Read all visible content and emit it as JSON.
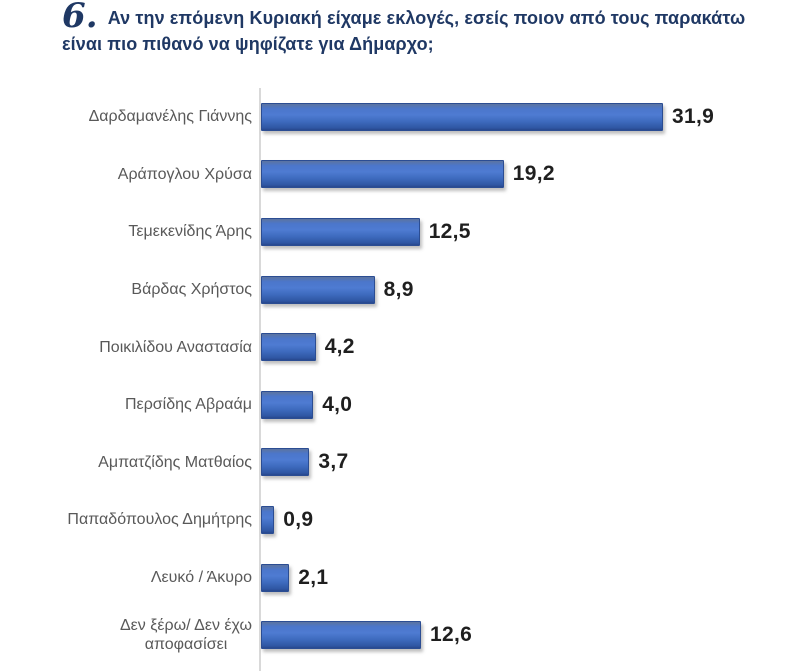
{
  "title": {
    "number": "6.",
    "question": "Αν την επόμενη Κυριακή είχαμε εκλογές, εσείς ποιον από τους παρακάτω είναι πιο πιθανό να ψηφίζατε για Δήμαρχο;"
  },
  "colors": {
    "title_text": "#1F3864",
    "bar_fill": "#4472C4",
    "bar_border": "#2B4D93",
    "category_label": "#595959",
    "value_label": "#1F1F1F",
    "axis_line": "#D9D9D9",
    "background": "#FFFFFF"
  },
  "chart_data": {
    "type": "bar",
    "orientation": "horizontal",
    "title": "Αν την επόμενη Κυριακή είχαμε εκλογές, εσείς ποιον από τους παρακάτω είναι πιο πιθανό να ψηφίζατε για Δήμαρχο;",
    "categories": [
      "Δαρδαμανέλης Γιάννης",
      "Αράπογλου Χρύσα",
      "Τεμεκενίδης Άρης",
      "Βάρδας Χρήστος",
      "Ποικιλίδου Αναστασία",
      "Περσίδης Αβραάμ",
      "Αμπατζίδης Ματθαίος",
      "Παπαδόπουλος Δημήτρης",
      "Λευκό / Άκυρο",
      "Δεν ξέρω/ Δεν έχω\nαποφασίσει"
    ],
    "values": [
      31.9,
      19.2,
      12.5,
      8.9,
      4.2,
      4.0,
      3.7,
      0.9,
      2.1,
      12.6
    ],
    "value_labels": [
      "31,9",
      "19,2",
      "12,5",
      "8,9",
      "4,2",
      "4,0",
      "3,7",
      "0,9",
      "2,1",
      "12,6"
    ],
    "xlabel": "",
    "ylabel": "",
    "xlim": [
      0,
      35
    ],
    "grid": false,
    "legend": false,
    "data_labels": true,
    "decimal_separator": ","
  }
}
